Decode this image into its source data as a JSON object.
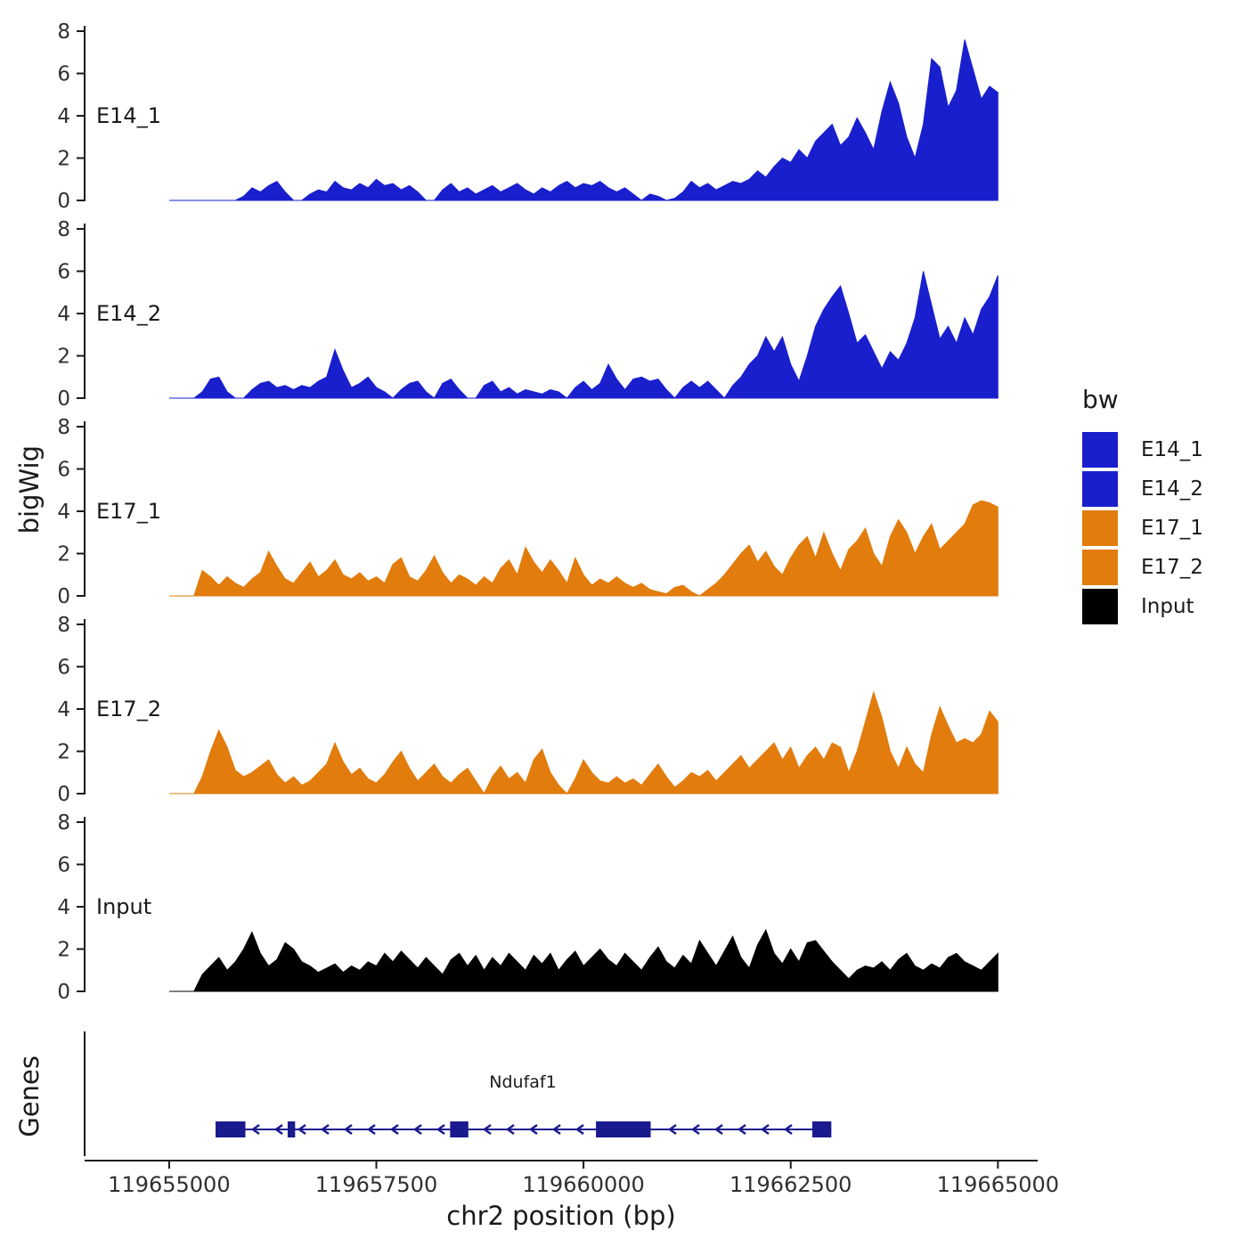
{
  "figure": {
    "y_axis_title": "bigWig",
    "genes_axis_title": "Genes",
    "x_axis_title": "chr2 position (bp)",
    "background": "#FFFFFF",
    "axis_color": "#1A1A1A",
    "text_color": "#303030"
  },
  "legend": {
    "title": "bw",
    "items": [
      {
        "label": "E14_1",
        "color": "#1A1FCE"
      },
      {
        "label": "E14_2",
        "color": "#1A1FCE"
      },
      {
        "label": "E17_1",
        "color": "#E17C0D"
      },
      {
        "label": "E17_2",
        "color": "#E17C0D"
      },
      {
        "label": "Input",
        "color": "#000000"
      }
    ]
  },
  "chart_data": {
    "type": "area",
    "title": "",
    "xlabel": "chr2 position (bp)",
    "ylabel": "bigWig",
    "layout_hint": "five stacked coverage panels sharing one x axis, gene model panel below, legend at right",
    "xlim": [
      119655000,
      119665000
    ],
    "x_ticks": [
      119655000,
      119657500,
      119660000,
      119662500,
      119665000
    ],
    "ylim": [
      0,
      8
    ],
    "y_ticks": [
      0,
      2,
      4,
      6,
      8
    ],
    "x_start": 119655000,
    "x_step": 100,
    "series": [
      {
        "name": "E14_1",
        "color": "#1A1FCE",
        "values": [
          0,
          0,
          0,
          0,
          0,
          0,
          0,
          0,
          0,
          0.2,
          0.6,
          0.4,
          0.7,
          0.9,
          0.4,
          0,
          0,
          0.3,
          0.5,
          0.4,
          0.9,
          0.6,
          0.5,
          0.8,
          0.6,
          1.0,
          0.7,
          0.8,
          0.5,
          0.7,
          0.4,
          0,
          0,
          0.5,
          0.8,
          0.4,
          0.6,
          0.3,
          0.5,
          0.7,
          0.4,
          0.6,
          0.8,
          0.5,
          0.3,
          0.6,
          0.4,
          0.7,
          0.9,
          0.6,
          0.8,
          0.7,
          0.9,
          0.6,
          0.4,
          0.6,
          0.3,
          0,
          0.3,
          0.2,
          0,
          0.1,
          0.4,
          0.9,
          0.6,
          0.8,
          0.5,
          0.7,
          0.9,
          0.8,
          1.0,
          1.4,
          1.1,
          1.6,
          2.0,
          1.8,
          2.4,
          2.0,
          2.8,
          3.2,
          3.6,
          2.6,
          3.0,
          3.9,
          3.2,
          2.4,
          4.2,
          5.6,
          4.6,
          3.0,
          2.0,
          3.6,
          6.7,
          6.3,
          4.4,
          5.2,
          7.6,
          6.2,
          4.8,
          5.4,
          5.1
        ]
      },
      {
        "name": "E14_2",
        "color": "#1A1FCE",
        "values": [
          0,
          0,
          0,
          0,
          0.3,
          0.9,
          1.0,
          0.3,
          0,
          0,
          0.4,
          0.7,
          0.8,
          0.5,
          0.6,
          0.4,
          0.6,
          0.5,
          0.8,
          1.0,
          2.3,
          1.3,
          0.5,
          0.7,
          1.0,
          0.5,
          0.3,
          0,
          0.4,
          0.7,
          0.8,
          0.3,
          0,
          0.7,
          0.9,
          0.4,
          0,
          0,
          0.6,
          0.8,
          0.3,
          0.5,
          0.2,
          0.4,
          0.3,
          0.2,
          0.4,
          0.3,
          0,
          0.5,
          0.8,
          0.4,
          0.7,
          1.6,
          0.9,
          0.4,
          0.9,
          1.0,
          0.8,
          0.9,
          0.4,
          0,
          0.5,
          0.8,
          0.5,
          0.8,
          0.4,
          0,
          0.6,
          1.0,
          1.6,
          2.0,
          2.9,
          2.2,
          2.9,
          1.6,
          0.8,
          2.0,
          3.4,
          4.2,
          4.8,
          5.3,
          4.0,
          2.6,
          3.0,
          2.2,
          1.4,
          2.2,
          1.8,
          2.6,
          3.8,
          6.0,
          4.4,
          2.8,
          3.4,
          2.6,
          3.8,
          3.0,
          4.2,
          4.8,
          5.8
        ]
      },
      {
        "name": "E17_1",
        "color": "#E17C0D",
        "values": [
          0,
          0,
          0,
          0,
          1.2,
          0.9,
          0.5,
          0.9,
          0.6,
          0.4,
          0.8,
          1.1,
          2.1,
          1.4,
          0.8,
          0.6,
          1.1,
          1.6,
          0.9,
          1.2,
          1.7,
          1.0,
          0.8,
          1.1,
          0.7,
          0.9,
          0.6,
          1.5,
          1.8,
          0.9,
          0.7,
          1.2,
          1.9,
          1.1,
          0.6,
          1.0,
          0.8,
          0.5,
          0.9,
          0.6,
          1.3,
          1.7,
          1.0,
          2.3,
          1.6,
          1.1,
          1.7,
          1.2,
          0.6,
          1.8,
          1.0,
          0.5,
          0.8,
          0.6,
          0.9,
          0.6,
          0.4,
          0.6,
          0.3,
          0.2,
          0.1,
          0.4,
          0.5,
          0.2,
          0,
          0.3,
          0.6,
          1.0,
          1.5,
          2.0,
          2.4,
          1.6,
          2.1,
          1.4,
          1.0,
          1.8,
          2.4,
          2.8,
          1.8,
          3.0,
          2.0,
          1.2,
          2.2,
          2.6,
          3.2,
          2.0,
          1.4,
          2.8,
          3.6,
          3.0,
          2.0,
          2.8,
          3.4,
          2.2,
          2.6,
          3.0,
          3.4,
          4.3,
          4.5,
          4.4,
          4.2
        ]
      },
      {
        "name": "E17_2",
        "color": "#E17C0D",
        "values": [
          0,
          0,
          0,
          0,
          0.8,
          2.0,
          3.0,
          2.2,
          1.1,
          0.8,
          1.0,
          1.3,
          1.6,
          0.9,
          0.5,
          0.8,
          0.4,
          0.6,
          1.0,
          1.4,
          2.4,
          1.5,
          0.9,
          1.2,
          0.7,
          0.5,
          0.9,
          1.5,
          2.0,
          1.2,
          0.6,
          1.0,
          1.4,
          0.8,
          0.5,
          0.9,
          1.2,
          0.6,
          0,
          0.8,
          1.3,
          0.7,
          1.0,
          0.5,
          1.6,
          2.1,
          1.0,
          0.4,
          0,
          0.7,
          1.6,
          1.0,
          0.6,
          0.5,
          0.8,
          0.5,
          0.7,
          0.4,
          0.9,
          1.4,
          0.8,
          0.3,
          0.6,
          1.0,
          0.8,
          1.1,
          0.6,
          1.0,
          1.4,
          1.8,
          1.2,
          1.6,
          2.0,
          2.4,
          1.6,
          2.2,
          1.2,
          1.8,
          2.2,
          1.6,
          2.4,
          2.2,
          1.0,
          2.0,
          3.4,
          4.8,
          3.6,
          2.0,
          1.2,
          2.2,
          1.4,
          1.0,
          2.8,
          4.1,
          3.2,
          2.4,
          2.6,
          2.4,
          2.8,
          3.9,
          3.4
        ]
      },
      {
        "name": "Input",
        "color": "#000000",
        "values": [
          0,
          0,
          0,
          0,
          0.8,
          1.2,
          1.6,
          1.0,
          1.4,
          2.0,
          2.8,
          1.8,
          1.2,
          1.5,
          2.3,
          2.0,
          1.4,
          1.2,
          0.9,
          1.1,
          1.3,
          0.9,
          1.2,
          1.0,
          1.4,
          1.2,
          1.8,
          1.4,
          1.9,
          1.5,
          1.1,
          1.6,
          1.2,
          0.8,
          1.5,
          1.8,
          1.2,
          1.7,
          1.0,
          1.6,
          1.2,
          1.8,
          1.4,
          1.0,
          1.7,
          1.3,
          1.8,
          1.0,
          1.5,
          1.9,
          1.2,
          1.6,
          2.0,
          1.5,
          1.2,
          1.8,
          1.4,
          1.0,
          1.6,
          2.1,
          1.4,
          1.1,
          1.7,
          1.3,
          2.4,
          1.8,
          1.2,
          1.9,
          2.6,
          1.6,
          1.1,
          2.2,
          2.9,
          1.8,
          1.3,
          2.0,
          1.4,
          2.3,
          2.4,
          1.9,
          1.4,
          1.0,
          0.6,
          1.0,
          1.2,
          1.1,
          1.4,
          1.0,
          1.5,
          1.8,
          1.2,
          1.0,
          1.3,
          1.1,
          1.6,
          1.8,
          1.4,
          1.2,
          1.0,
          1.4,
          1.8
        ]
      }
    ],
    "gene_track": {
      "label": "Genes",
      "gene": {
        "name": "Ndufaf1",
        "strand": "-",
        "start": 119655560,
        "end": 119662990,
        "color": "#1A1A8F",
        "exons": [
          [
            119655560,
            119655920
          ],
          [
            119656430,
            119656520
          ],
          [
            119658390,
            119658610
          ],
          [
            119660150,
            119660810
          ],
          [
            119662760,
            119662990
          ]
        ]
      }
    }
  }
}
